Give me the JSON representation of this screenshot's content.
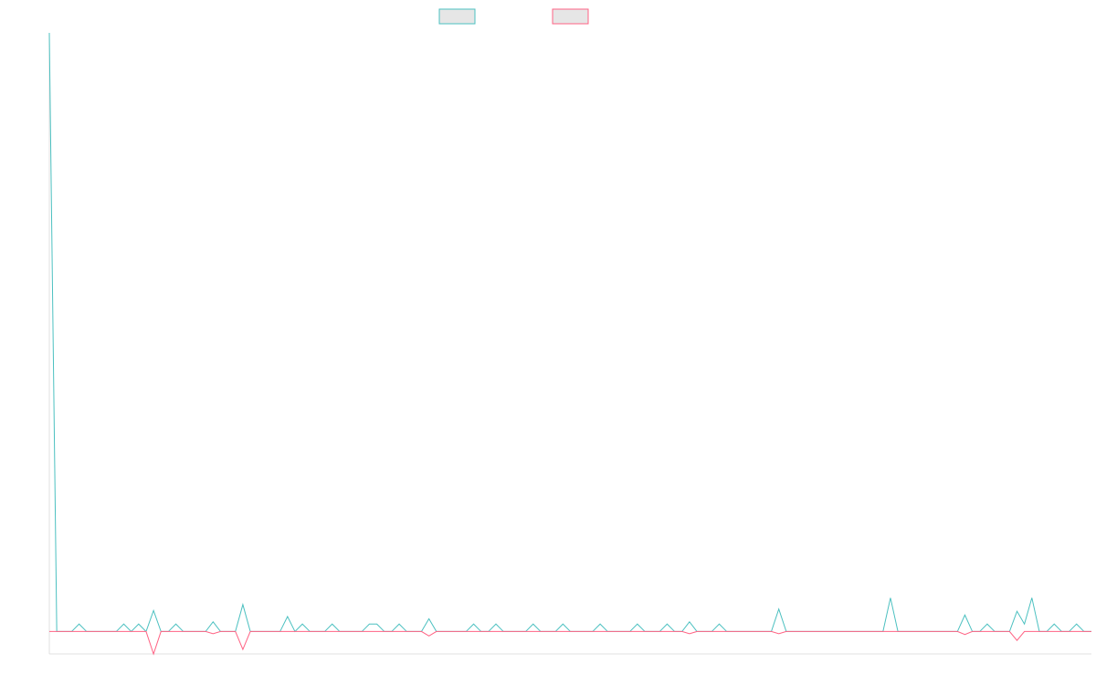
{
  "chart_data": {
    "type": "line",
    "categories": [
      null,
      null,
      null,
      null,
      null,
      null,
      null,
      null,
      null,
      null,
      null,
      null,
      null,
      null,
      null,
      null,
      null,
      null,
      null,
      null,
      null,
      null,
      null,
      null,
      null,
      null,
      null,
      null,
      null,
      null,
      null,
      null,
      null,
      null,
      null,
      null,
      null,
      null,
      null,
      null,
      null,
      null,
      null,
      null,
      null,
      null,
      null,
      null,
      null,
      null,
      null,
      null,
      null,
      null,
      null,
      null,
      null,
      null,
      null,
      null,
      null,
      null,
      null,
      null,
      null,
      null,
      null,
      null,
      null,
      null,
      null,
      null,
      null,
      null,
      null,
      null,
      null,
      null,
      null,
      null,
      null,
      null,
      null,
      null,
      null,
      null,
      null,
      null,
      null,
      null,
      null,
      null,
      null,
      null,
      null,
      null,
      null,
      null,
      null,
      null,
      null,
      null,
      null,
      null,
      null,
      null,
      null,
      null,
      null,
      null,
      null,
      null,
      null,
      null,
      null,
      null,
      null,
      null,
      null,
      null,
      null,
      null,
      null,
      null,
      null,
      null,
      null,
      null,
      null,
      null,
      null,
      null,
      null,
      null,
      null,
      null,
      null,
      null,
      null,
      null,
      null
    ],
    "series": [
      {
        "color": "#4bc0c0",
        "values": [
          80,
          0,
          0,
          0,
          1,
          0,
          0,
          0,
          0,
          0,
          1,
          0,
          1,
          0,
          2.8,
          0,
          0,
          1,
          0,
          0,
          0,
          0,
          1.3,
          0,
          0,
          0,
          3.6,
          0,
          0,
          0,
          0,
          0,
          2,
          0,
          1,
          0,
          0,
          0,
          1,
          0,
          0,
          0,
          0,
          1,
          1,
          0,
          0,
          1,
          0,
          0,
          0,
          1.7,
          0,
          0,
          0,
          0,
          0,
          1,
          0,
          0,
          1,
          0,
          0,
          0,
          0,
          1,
          0,
          0,
          0,
          1,
          0,
          0,
          0,
          0,
          1,
          0,
          0,
          0,
          0,
          1,
          0,
          0,
          0,
          1,
          0,
          0,
          1.3,
          0,
          0,
          0,
          1,
          0,
          0,
          0,
          0,
          0,
          0,
          0,
          3,
          0,
          0,
          0,
          0,
          0,
          0,
          0,
          0,
          0,
          0,
          0,
          0,
          0,
          0,
          4.5,
          0,
          0,
          0,
          0,
          0,
          0,
          0,
          0,
          0,
          2.2,
          0,
          0,
          1,
          0,
          0,
          0,
          2.7,
          1,
          4.5,
          0,
          0,
          1,
          0,
          0,
          1,
          0,
          0
        ]
      },
      {
        "color": "#ff6384",
        "values": [
          0,
          0,
          0,
          0,
          0,
          0,
          0,
          0,
          0,
          0,
          0,
          0,
          0,
          0,
          -3,
          0,
          0,
          0,
          0,
          0,
          0,
          0,
          -0.3,
          0,
          0,
          0,
          -2.4,
          0,
          0,
          0,
          0,
          0,
          0,
          0,
          0,
          0,
          0,
          0,
          0,
          0,
          0,
          0,
          0,
          0,
          0,
          0,
          0,
          0,
          0,
          0,
          0,
          -0.6,
          0,
          0,
          0,
          0,
          0,
          0,
          0,
          0,
          0,
          0,
          0,
          0,
          0,
          0,
          0,
          0,
          0,
          0,
          0,
          0,
          0,
          0,
          0,
          0,
          0,
          0,
          0,
          0,
          0,
          0,
          0,
          0,
          0,
          0,
          -0.3,
          0,
          0,
          0,
          0,
          0,
          0,
          0,
          0,
          0,
          0,
          0,
          -0.3,
          0,
          0,
          0,
          0,
          0,
          0,
          0,
          0,
          0,
          0,
          0,
          0,
          0,
          0,
          0,
          0,
          0,
          0,
          0,
          0,
          0,
          0,
          0,
          0,
          -0.4,
          0,
          0,
          0,
          0,
          0,
          0,
          -1.2,
          0,
          0,
          0,
          0,
          0,
          0,
          0,
          0,
          0,
          0
        ]
      }
    ],
    "ylim": [
      -3,
      80
    ]
  }
}
